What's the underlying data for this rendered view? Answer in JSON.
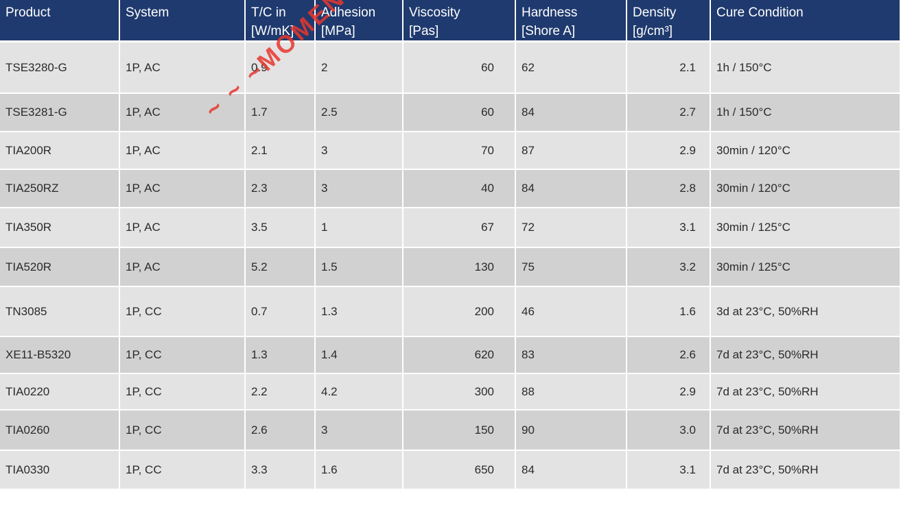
{
  "headers": [
    [
      "Product",
      ""
    ],
    [
      "System",
      ""
    ],
    [
      "T/C in",
      "[W/mK]"
    ],
    [
      "Adhesion",
      "[MPa]"
    ],
    [
      "Viscosity",
      "[Pas]"
    ],
    [
      "Hardness",
      "[Shore A]"
    ],
    [
      "Density",
      "[g/cm³]"
    ],
    [
      "Cure Condition",
      ""
    ]
  ],
  "rows": [
    [
      "TSE3280-G",
      "1P, AC",
      "0.9",
      "2",
      "60",
      "62",
      "2.1",
      "1h / 150°C"
    ],
    [
      "TSE3281-G",
      "1P, AC",
      "1.7",
      "2.5",
      "60",
      "84",
      "2.7",
      "1h / 150°C"
    ],
    [
      "TIA200R",
      "1P, AC",
      "2.1",
      "3",
      "70",
      "87",
      "2.9",
      "30min / 120°C"
    ],
    [
      "TIA250RZ",
      "1P, AC",
      "2.3",
      "3",
      "40",
      "84",
      "2.8",
      "30min / 120°C"
    ],
    [
      "TIA350R",
      "1P, AC",
      "3.5",
      "1",
      "67",
      "72",
      "3.1",
      "30min / 125°C"
    ],
    [
      "TIA520R",
      "1P, AC",
      "5.2",
      "1.5",
      "130",
      "75",
      "3.2",
      "30min / 125°C"
    ],
    [
      "TN3085",
      "1P, CC",
      "0.7",
      "1.3",
      "200",
      "46",
      "1.6",
      "3d at 23°C, 50%RH"
    ],
    [
      "XE11-B5320",
      "1P, CC",
      "1.3",
      "1.4",
      "620",
      "83",
      "2.6",
      "7d at 23°C, 50%RH"
    ],
    [
      "TIA0220",
      "1P, CC",
      "2.2",
      "4.2",
      "300",
      "88",
      "2.9",
      "7d at 23°C, 50%RH"
    ],
    [
      "TIA0260",
      "1P, CC",
      "2.6",
      "3",
      "150",
      "90",
      "3.0",
      "7d at 23°C, 50%RH"
    ],
    [
      "TIA0330",
      "1P, CC",
      "3.3",
      "1.6",
      "650",
      "84",
      "3.1",
      "7d at 23°C, 50%RH"
    ]
  ],
  "watermark": "~ ~ ~MOMENT"
}
